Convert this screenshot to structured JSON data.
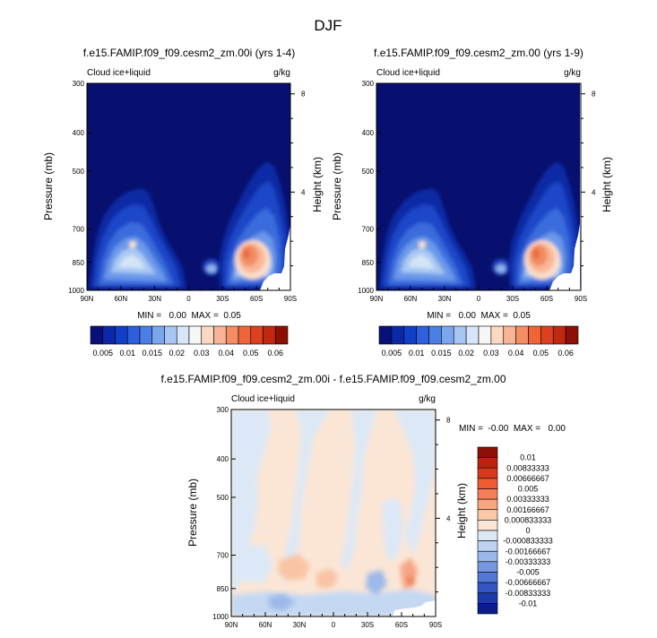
{
  "figure": {
    "title": "DJF"
  },
  "panels": [
    {
      "id": "p1",
      "title": "f.e15.FAMIP.f09_f09.cesm2_zm.00i (yrs 1-4)",
      "left_label": "Cloud ice+liquid",
      "right_label": "g/kg",
      "ylabel": "Pressure (mb)",
      "ylabel_right": "Height (km)",
      "stats": "MIN =   0.00  MAX =  0.05"
    },
    {
      "id": "p2",
      "title": "f.e15.FAMIP.f09_f09.cesm2_zm.00 (yrs 1-9)",
      "left_label": "Cloud ice+liquid",
      "right_label": "g/kg",
      "ylabel": "Pressure (mb)",
      "ylabel_right": "Height (km)",
      "stats": "MIN =   0.00  MAX =  0.05"
    },
    {
      "id": "p3",
      "title": "f.e15.FAMIP.f09_f09.cesm2_zm.00i - f.e15.FAMIP.f09_f09.cesm2_zm.00",
      "left_label": "Cloud ice+liquid",
      "right_label": "g/kg",
      "ylabel": "Pressure (mb)",
      "ylabel_right": "Height (km)",
      "stats": "MIN =  -0.00  MAX =   0.00"
    }
  ],
  "chart_data": [
    {
      "type": "heatmap",
      "title": "f.e15.FAMIP.f09_f09.cesm2_zm.00i (yrs 1-4)",
      "variable": "Cloud ice+liquid",
      "units": "g/kg",
      "x_ticks": [
        "90N",
        "60N",
        "30N",
        "0",
        "30S",
        "60S",
        "90S"
      ],
      "x_values": [
        90,
        60,
        30,
        0,
        -30,
        -60,
        -90
      ],
      "y_ticks": [
        300,
        400,
        500,
        700,
        850,
        1000
      ],
      "y_range": [
        300,
        1000
      ],
      "height_ticks": [
        4,
        8
      ],
      "min": 0.0,
      "max": 0.05,
      "features": [
        {
          "name": "NH midlatitude cloud maximum",
          "lat": 57,
          "pressure": 840,
          "peak_value": 0.025
        },
        {
          "name": "SH midlatitude cloud maximum",
          "lat": -55,
          "pressure": 860,
          "peak_value": 0.05
        }
      ]
    },
    {
      "type": "heatmap",
      "title": "f.e15.FAMIP.f09_f09.cesm2_zm.00 (yrs 1-9)",
      "variable": "Cloud ice+liquid",
      "units": "g/kg",
      "x_ticks": [
        "90N",
        "60N",
        "30N",
        "0",
        "30S",
        "60S",
        "90S"
      ],
      "x_values": [
        90,
        60,
        30,
        0,
        -30,
        -60,
        -90
      ],
      "y_ticks": [
        300,
        400,
        500,
        700,
        850,
        1000
      ],
      "y_range": [
        300,
        1000
      ],
      "height_ticks": [
        4,
        8
      ],
      "min": 0.0,
      "max": 0.05,
      "features": [
        {
          "name": "NH midlatitude cloud maximum",
          "lat": 57,
          "pressure": 840,
          "peak_value": 0.025
        },
        {
          "name": "SH midlatitude cloud maximum",
          "lat": -55,
          "pressure": 860,
          "peak_value": 0.05
        }
      ]
    },
    {
      "type": "heatmap",
      "title": "f.e15.FAMIP.f09_f09.cesm2_zm.00i - f.e15.FAMIP.f09_f09.cesm2_zm.00",
      "variable": "Cloud ice+liquid",
      "units": "g/kg",
      "x_ticks": [
        "90N",
        "60N",
        "30N",
        "0",
        "30S",
        "60S",
        "90S"
      ],
      "x_values": [
        90,
        60,
        30,
        0,
        -30,
        -60,
        -90
      ],
      "y_ticks": [
        300,
        400,
        500,
        700,
        850,
        1000
      ],
      "y_range": [
        300,
        1000
      ],
      "height_ticks": [
        4,
        8
      ],
      "min": -0.0,
      "max": 0.0
    }
  ],
  "colorbars": {
    "abs": {
      "labels": [
        "0.005",
        "0.01",
        "0.015",
        "0.02",
        "0.03",
        "0.04",
        "0.05",
        "0.06"
      ],
      "colors": [
        "#08107a",
        "#0b28a8",
        "#1040c8",
        "#2e5fdc",
        "#4a7fe6",
        "#7aa6ee",
        "#a8c6f4",
        "#d6e6f8",
        "#f6f6f6",
        "#fbd8c2",
        "#f8b494",
        "#f48c64",
        "#ee6638",
        "#dc4020",
        "#c02810",
        "#8c1004"
      ]
    },
    "diff": {
      "labels": [
        "0.01",
        "0.00833333",
        "0.00666667",
        "0.005",
        "0.00333333",
        "0.00166667",
        "0.000833333",
        "0",
        "-0.000833333",
        "-0.00166667",
        "-0.00333333",
        "-0.005",
        "-0.00666667",
        "-0.00833333",
        "-0.01"
      ],
      "colors": [
        "#8c1004",
        "#b82410",
        "#d63a1c",
        "#ee5a32",
        "#f47e58",
        "#f8a47e",
        "#fbc8a8",
        "#fbe6d6",
        "#dce8f6",
        "#bcd2f0",
        "#9ab8ea",
        "#7698e0",
        "#5476d4",
        "#3456c4",
        "#1c38aa",
        "#0a1c88"
      ]
    }
  }
}
